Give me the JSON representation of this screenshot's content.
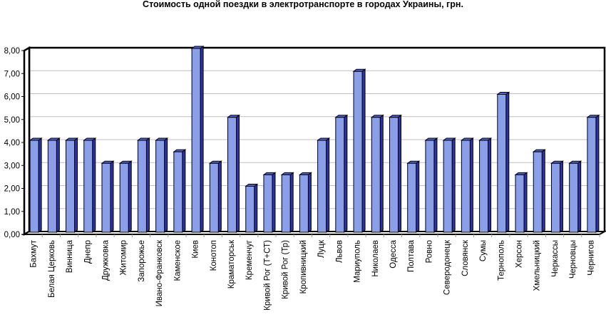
{
  "chart_data": {
    "type": "bar",
    "title": "Стоимость одной поездки в электротранспорте в городах Украины, грн.",
    "xlabel": "",
    "ylabel": "",
    "ylim": [
      0,
      8
    ],
    "yticks": [
      "0,00",
      "1,00",
      "2,00",
      "3,00",
      "4,00",
      "5,00",
      "6,00",
      "7,00",
      "8,00"
    ],
    "grid": true,
    "style": "3d",
    "bar_color": "#8a9fe8",
    "bar_side_color": "#2a33b0",
    "grid_color": "#c8b8c8",
    "categories": [
      "Бахмут",
      "Белая Церковь",
      "Винница",
      "Днепр",
      "Дружковка",
      "Житомир",
      "Запорожье",
      "Ивано-Франковск",
      "Каменское",
      "Киев",
      "Конотоп",
      "Краматорськ",
      "Кременчуг",
      "Кривой Рог (Т+СТ)",
      "Кривой Рог (Тр)",
      "Кропивницкий",
      "Луцк",
      "Львов",
      "Мариуполь",
      "Николаев",
      "Одесса",
      "Полтава",
      "Ровно",
      "Северодонецк",
      "Словянск",
      "Сумы",
      "Тернополь",
      "Херсон",
      "Хмельницкий",
      "Черкассы",
      "Черновцы",
      "Чернигов"
    ],
    "values": [
      4,
      4,
      4,
      4,
      3,
      3,
      4,
      4,
      3.5,
      8,
      3,
      5,
      2,
      2.5,
      2.5,
      2.5,
      4,
      5,
      7,
      5,
      5,
      3,
      4,
      4,
      4,
      4,
      6,
      2.5,
      3.5,
      3,
      3,
      5
    ]
  }
}
